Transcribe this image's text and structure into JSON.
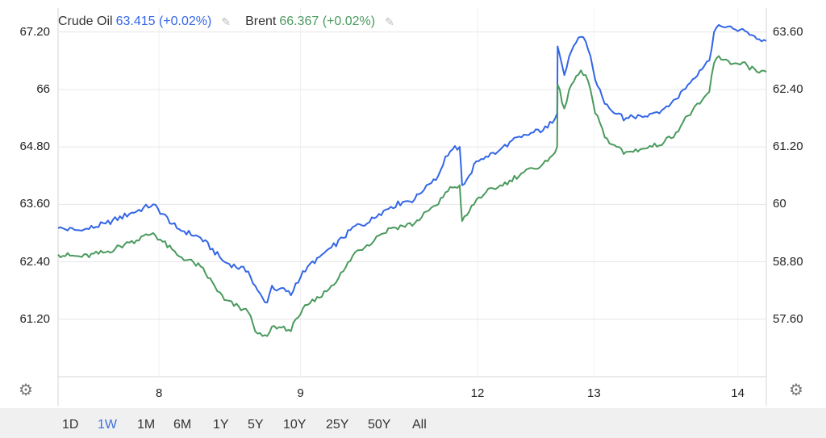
{
  "legend": {
    "series1_name": "Crude Oil",
    "series1_value": "63.415 (+0.02%)",
    "series2_name": "Brent",
    "series2_value": "66.367 (+0.02%)",
    "edit_icon": "pencil-icon"
  },
  "settings_icon": "gear-icon",
  "range_selector": {
    "options": [
      "1D",
      "1W",
      "1M",
      "6M",
      "1Y",
      "5Y",
      "10Y",
      "25Y",
      "50Y",
      "All"
    ],
    "selected": "1W"
  },
  "colors": {
    "crude": "#3366e6",
    "brent": "#4a9a5e",
    "grid": "#e6e6e6",
    "active": "#3b6fe0"
  },
  "chart_data": {
    "type": "line",
    "x_tick_labels": [
      "8",
      "9",
      "12",
      "13",
      "14"
    ],
    "left_axis": {
      "ticks": [
        "61.20",
        "62.40",
        "63.60",
        "64.80",
        "66",
        "67.20"
      ],
      "ylim": [
        60.0,
        67.7
      ]
    },
    "right_axis": {
      "ticks": [
        "57.60",
        "58.80",
        "60",
        "61.20",
        "62.40",
        "63.60"
      ],
      "ylim": [
        56.4,
        64.1
      ]
    },
    "grid": true,
    "series": [
      {
        "name": "Crude Oil",
        "axis": "right",
        "points": [
          [
            0,
            59.5
          ],
          [
            1,
            59.45
          ],
          [
            2,
            59.6
          ],
          [
            3,
            59.8
          ],
          [
            4,
            60.0
          ],
          [
            5,
            59.5
          ],
          [
            6,
            59.3
          ],
          [
            7,
            58.8
          ],
          [
            8,
            58.6
          ],
          [
            8.2,
            58.35
          ],
          [
            8.4,
            58.2
          ],
          [
            8.6,
            58.05
          ],
          [
            8.8,
            57.95
          ],
          [
            9,
            58.3
          ],
          [
            9.2,
            58.2
          ],
          [
            9.5,
            58.25
          ],
          [
            9.8,
            58.1
          ],
          [
            10,
            58.35
          ],
          [
            10.5,
            58.7
          ],
          [
            11,
            58.9
          ],
          [
            11.5,
            59.1
          ],
          [
            12,
            59.3
          ],
          [
            12.5,
            59.55
          ],
          [
            13,
            59.6
          ],
          [
            13.5,
            59.8
          ],
          [
            14,
            59.95
          ],
          [
            14.5,
            60.05
          ],
          [
            15,
            60.1
          ],
          [
            15.5,
            60.4
          ],
          [
            16,
            60.6
          ],
          [
            16.3,
            61.0
          ],
          [
            16.6,
            61.15
          ],
          [
            16.9,
            61.2
          ],
          [
            17,
            60.4
          ],
          [
            17.3,
            60.6
          ],
          [
            17.6,
            60.9
          ],
          [
            18,
            61.0
          ],
          [
            18.5,
            61.1
          ],
          [
            19,
            61.3
          ],
          [
            19.5,
            61.4
          ],
          [
            20,
            61.5
          ],
          [
            20.6,
            61.6
          ],
          [
            21,
            61.9
          ],
          [
            21.02,
            63.3
          ],
          [
            21.3,
            62.7
          ],
          [
            21.6,
            63.2
          ],
          [
            22,
            63.5
          ],
          [
            22.2,
            63.4
          ],
          [
            22.4,
            63.1
          ],
          [
            22.6,
            62.6
          ],
          [
            22.8,
            62.4
          ],
          [
            23,
            62.1
          ],
          [
            23.3,
            61.95
          ],
          [
            23.6,
            61.9
          ],
          [
            23.8,
            61.75
          ],
          [
            24,
            61.8
          ],
          [
            24.5,
            61.85
          ],
          [
            25,
            61.9
          ],
          [
            25.5,
            62.0
          ],
          [
            26,
            62.2
          ],
          [
            26.5,
            62.5
          ],
          [
            27,
            62.8
          ],
          [
            27.4,
            63.0
          ],
          [
            27.6,
            63.6
          ],
          [
            27.8,
            63.75
          ],
          [
            28,
            63.7
          ],
          [
            28.5,
            63.65
          ],
          [
            29,
            63.6
          ],
          [
            29.5,
            63.45
          ],
          [
            29.8,
            63.415
          ]
        ]
      },
      {
        "name": "Brent",
        "axis": "left",
        "points": [
          [
            0,
            62.55
          ],
          [
            1,
            62.5
          ],
          [
            2,
            62.6
          ],
          [
            3,
            62.8
          ],
          [
            4,
            63.0
          ],
          [
            5,
            62.55
          ],
          [
            6,
            62.3
          ],
          [
            7,
            61.6
          ],
          [
            8,
            61.35
          ],
          [
            8.2,
            61.1
          ],
          [
            8.4,
            60.9
          ],
          [
            8.6,
            60.85
          ],
          [
            8.8,
            60.85
          ],
          [
            9,
            61.05
          ],
          [
            9.2,
            61.0
          ],
          [
            9.5,
            61.05
          ],
          [
            9.8,
            60.95
          ],
          [
            10,
            61.2
          ],
          [
            10.5,
            61.5
          ],
          [
            11,
            61.65
          ],
          [
            11.5,
            61.9
          ],
          [
            12,
            62.2
          ],
          [
            12.5,
            62.6
          ],
          [
            13,
            62.75
          ],
          [
            13.5,
            62.95
          ],
          [
            14,
            63.1
          ],
          [
            14.5,
            63.15
          ],
          [
            15,
            63.2
          ],
          [
            15.5,
            63.45
          ],
          [
            16,
            63.6
          ],
          [
            16.3,
            63.85
          ],
          [
            16.6,
            63.95
          ],
          [
            16.9,
            64.0
          ],
          [
            17,
            63.25
          ],
          [
            17.3,
            63.45
          ],
          [
            17.6,
            63.7
          ],
          [
            18,
            63.85
          ],
          [
            18.5,
            63.95
          ],
          [
            19,
            64.1
          ],
          [
            19.5,
            64.25
          ],
          [
            20,
            64.35
          ],
          [
            20.6,
            64.5
          ],
          [
            21,
            64.8
          ],
          [
            21.02,
            66.1
          ],
          [
            21.3,
            65.6
          ],
          [
            21.6,
            66.1
          ],
          [
            22,
            66.4
          ],
          [
            22.2,
            66.3
          ],
          [
            22.4,
            66.0
          ],
          [
            22.6,
            65.5
          ],
          [
            22.8,
            65.3
          ],
          [
            23,
            65.0
          ],
          [
            23.3,
            64.85
          ],
          [
            23.6,
            64.8
          ],
          [
            23.8,
            64.65
          ],
          [
            24,
            64.7
          ],
          [
            24.5,
            64.75
          ],
          [
            25,
            64.8
          ],
          [
            25.5,
            64.9
          ],
          [
            26,
            65.1
          ],
          [
            26.5,
            65.45
          ],
          [
            27,
            65.7
          ],
          [
            27.4,
            65.95
          ],
          [
            27.6,
            66.55
          ],
          [
            27.8,
            66.7
          ],
          [
            28,
            66.62
          ],
          [
            28.5,
            66.55
          ],
          [
            29,
            66.5
          ],
          [
            29.5,
            66.35
          ],
          [
            29.8,
            66.367
          ]
        ]
      }
    ]
  }
}
